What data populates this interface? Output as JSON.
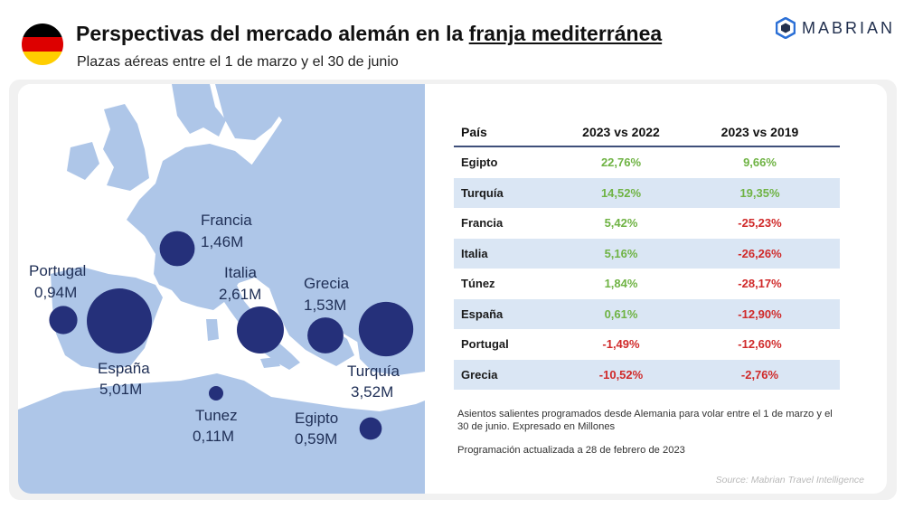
{
  "header": {
    "title_part1": "Perspectivas del mercado alemán en la ",
    "title_part2": "franja mediterránea",
    "subtitle": "Plazas aéreas entre el 1 de marzo y el 30 de junio",
    "flag_colors": [
      "#000000",
      "#dd0000",
      "#ffce00"
    ],
    "logo_text": "MABRIAN",
    "logo_icon": "hexagon-logo-icon"
  },
  "chart_data": [
    {
      "type": "scatter",
      "subtype": "bubble-map",
      "unit": "M",
      "color": "#25307a",
      "points": [
        {
          "label": "Francia",
          "value": 1.46,
          "value_label": "1,46M"
        },
        {
          "label": "Portugal",
          "value": 0.94,
          "value_label": "0,94M"
        },
        {
          "label": "España",
          "value": 5.01,
          "value_label": "5,01M"
        },
        {
          "label": "Italia",
          "value": 2.61,
          "value_label": "2,61M"
        },
        {
          "label": "Grecia",
          "value": 1.53,
          "value_label": "1,53M"
        },
        {
          "label": "Turquía",
          "value": 3.52,
          "value_label": "3,52M"
        },
        {
          "label": "Tunez",
          "value": 0.11,
          "value_label": "0,11M"
        },
        {
          "label": "Egipto",
          "value": 0.59,
          "value_label": "0,59M"
        }
      ]
    },
    {
      "type": "table",
      "columns": [
        "País",
        "2023 vs 2022",
        "2023 vs 2019"
      ],
      "rows": [
        {
          "pais": "Egipto",
          "v2022": "22,76%",
          "v2019": "9,66%"
        },
        {
          "pais": "Turquía",
          "v2022": "14,52%",
          "v2019": "19,35%"
        },
        {
          "pais": "Francia",
          "v2022": "5,42%",
          "v2019": "-25,23%"
        },
        {
          "pais": "Italia",
          "v2022": "5,16%",
          "v2019": "-26,26%"
        },
        {
          "pais": "Túnez",
          "v2022": "1,84%",
          "v2019": "-28,17%"
        },
        {
          "pais": "España",
          "v2022": "0,61%",
          "v2019": "-12,90%"
        },
        {
          "pais": "Portugal",
          "v2022": "-1,49%",
          "v2019": "-12,60%"
        },
        {
          "pais": "Grecia",
          "v2022": "-10,52%",
          "v2019": "-2,76%"
        }
      ],
      "positive_color": "#6fb344",
      "negative_color": "#d02a2a",
      "alt_row_color": "#dae6f4"
    }
  ],
  "notes": {
    "description": "Asientos salientes programados desde Alemania para volar entre el 1 de marzo y el 30 de junio. Expresado en Millones",
    "updated": "Programación actualizada a 28 de febrero de 2023",
    "source": "Source: Mabrian Travel Intelligence"
  }
}
